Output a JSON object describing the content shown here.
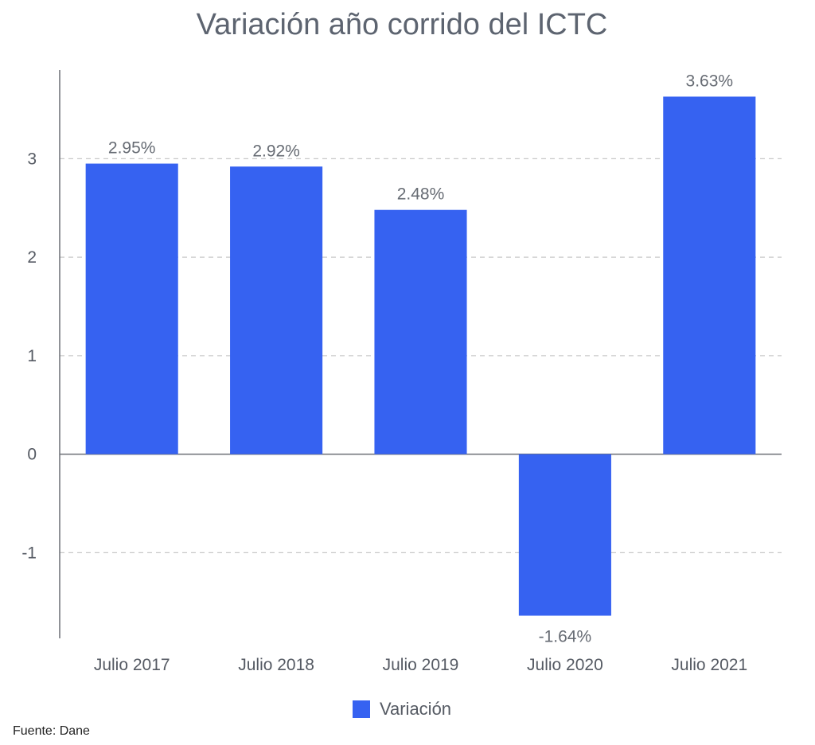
{
  "chart_data": {
    "type": "bar",
    "title": "Variación año corrido del ICTC",
    "categories": [
      "Julio 2017",
      "Julio 2018",
      "Julio 2019",
      "Julio 2020",
      "Julio 2021"
    ],
    "series": [
      {
        "name": "Variación",
        "values": [
          2.95,
          2.92,
          2.48,
          -1.64,
          3.63
        ],
        "labels": [
          "2.95%",
          "2.92%",
          "2.48%",
          "-1.64%",
          "3.63%"
        ],
        "color": "#3662f1"
      }
    ],
    "yticks": [
      -1,
      0,
      1,
      2,
      3
    ],
    "ylim": [
      -1.87,
      3.9
    ],
    "grid": true,
    "legend_position": "bottom",
    "source": "Fuente: Dane"
  }
}
